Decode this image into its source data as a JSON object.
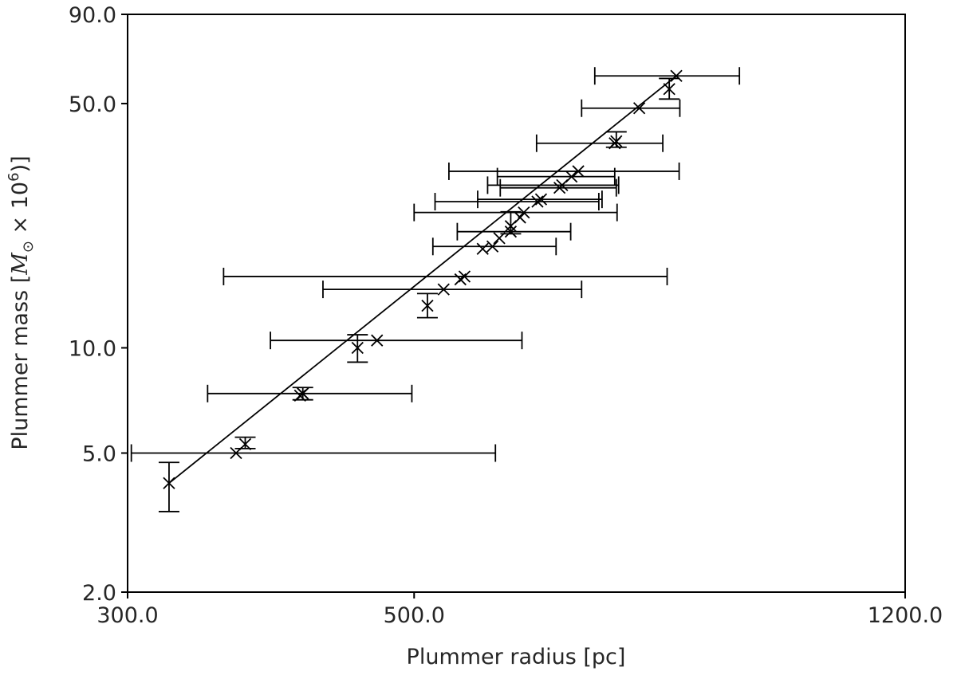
{
  "chart_data": {
    "type": "scatter",
    "xlabel": "Plummer radius [pc]",
    "ylabel": {
      "prefix": "Plummer mass [",
      "symbol": "M",
      "sub": "⊙",
      "mid": " × 10",
      "sup": "6",
      "suffix": ")]"
    },
    "xscale": "log",
    "yscale": "log",
    "xlim": [
      300,
      1200
    ],
    "ylim": [
      2,
      90
    ],
    "xticks": [
      "300.0",
      "500.0",
      "1200.0"
    ],
    "yticks": [
      "2.0",
      "5.0",
      "10.0",
      "50.0",
      "90.0"
    ],
    "xtick_values": [
      300,
      500,
      1200
    ],
    "ytick_values": [
      2,
      5,
      10,
      50,
      90
    ],
    "grid": false,
    "fit_line": {
      "x": [
        323,
        798
      ],
      "y": [
        4.1,
        60
      ]
    },
    "points": [
      {
        "x": 323,
        "y": 4.1,
        "yerr": [
          3.4,
          4.7
        ]
      },
      {
        "x": 364,
        "y": 5.0,
        "xerr": [
          302,
          578
        ]
      },
      {
        "x": 370,
        "y": 5.3,
        "yerr": [
          5.15,
          5.55
        ]
      },
      {
        "x": 408,
        "y": 7.3
      },
      {
        "x": 410,
        "y": 7.4,
        "xerr": [
          346,
          498
        ]
      },
      {
        "x": 410,
        "y": 7.4,
        "yerr": [
          7.1,
          7.7
        ]
      },
      {
        "x": 452,
        "y": 10.0,
        "yerr": [
          9.1,
          10.9
        ]
      },
      {
        "x": 468,
        "y": 10.5,
        "xerr": [
          387,
          606
        ]
      },
      {
        "x": 512,
        "y": 13.2,
        "yerr": [
          12.2,
          14.3
        ]
      },
      {
        "x": 527,
        "y": 14.7,
        "xerr": [
          425,
          674
        ]
      },
      {
        "x": 543,
        "y": 15.7
      },
      {
        "x": 547,
        "y": 16.0,
        "xerr": [
          356,
          785
        ]
      },
      {
        "x": 565,
        "y": 19.2
      },
      {
        "x": 575,
        "y": 19.5,
        "xerr": [
          517,
          644
        ]
      },
      {
        "x": 582,
        "y": 20.6
      },
      {
        "x": 594,
        "y": 21.5,
        "xerr": [
          540,
          661
        ]
      },
      {
        "x": 594,
        "y": 22.3,
        "yerr": [
          21.2,
          24.5
        ]
      },
      {
        "x": 604,
        "y": 23.6
      },
      {
        "x": 608,
        "y": 24.4,
        "xerr": [
          500,
          718
        ]
      },
      {
        "x": 623,
        "y": 26.2,
        "xerr": [
          519,
          695
        ]
      },
      {
        "x": 627,
        "y": 26.6,
        "xerr": [
          560,
          699
        ]
      },
      {
        "x": 648,
        "y": 28.7,
        "xerr": [
          583,
          717
        ]
      },
      {
        "x": 651,
        "y": 29.2,
        "xerr": [
          570,
          720
        ]
      },
      {
        "x": 662,
        "y": 30.9,
        "xerr": [
          580,
          715
        ]
      },
      {
        "x": 670,
        "y": 32.0,
        "xerr": [
          532,
          802
        ]
      },
      {
        "x": 715,
        "y": 38.5,
        "xerr": [
          622,
          779
        ]
      },
      {
        "x": 717,
        "y": 39.0,
        "yerr": [
          37.5,
          41.5
        ]
      },
      {
        "x": 747,
        "y": 48.5,
        "xerr": [
          674,
          803
        ]
      },
      {
        "x": 788,
        "y": 55.0,
        "yerr": [
          51.5,
          59.0
        ]
      },
      {
        "x": 798,
        "y": 60.0,
        "xerr": [
          690,
          893
        ]
      }
    ]
  }
}
